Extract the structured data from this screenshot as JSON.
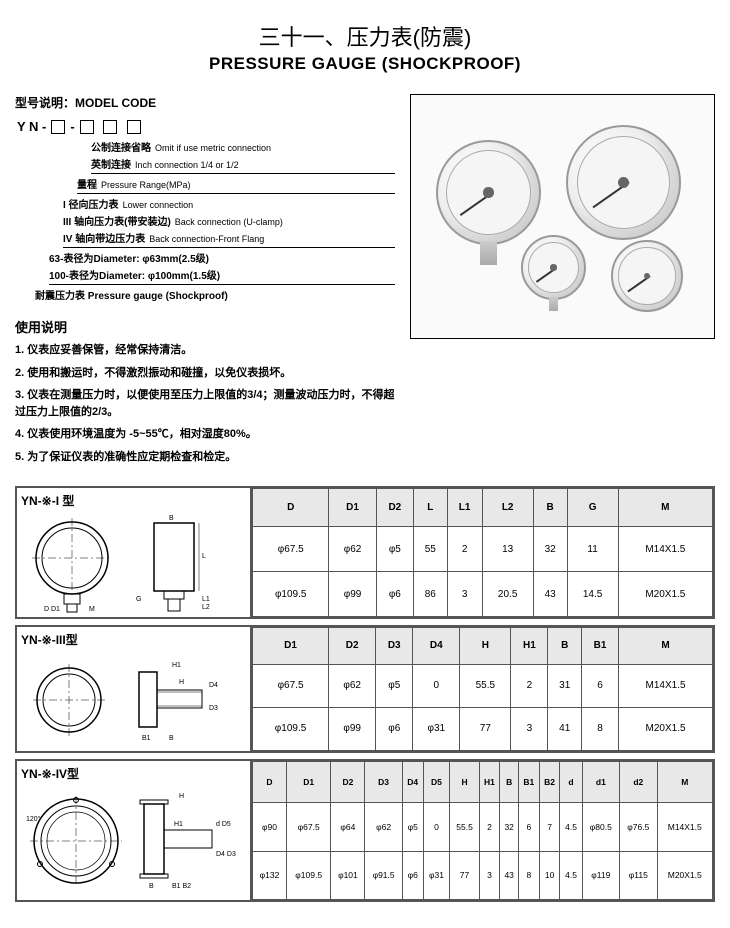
{
  "title_cn": "三十一、压力表(防震)",
  "title_en": "PRESSURE GAUGE (SHOCKPROOF)",
  "model_heading": "型号说明：MODEL CODE",
  "code_prefix": "Y N -",
  "code_lines": [
    {
      "cn": "公制连接省略",
      "en": "Omit if use metric connection",
      "indent": 76
    },
    {
      "cn": "英制连接",
      "en": "Inch connection 1/4 or 1/2",
      "indent": 76
    },
    {
      "cn": "量程",
      "en": "Pressure Range(MPa)",
      "indent": 62
    },
    {
      "cn": "I 径向压力表",
      "en": "Lower connection",
      "indent": 48
    },
    {
      "cn": "III 轴向压力表(带安装边)",
      "en": "Back connection (U-clamp)",
      "indent": 48
    },
    {
      "cn": "IV 轴向带边压力表",
      "en": "Back connection-Front Flang",
      "indent": 48
    },
    {
      "cn": "63-表径为Diameter: φ63mm(2.5级)",
      "en": "",
      "indent": 34
    },
    {
      "cn": "100-表径为Diameter: φ100mm(1.5级)",
      "en": "",
      "indent": 34
    },
    {
      "cn": "耐震压力表 Pressure gauge (Shockproof)",
      "en": "",
      "indent": 20
    }
  ],
  "usage_heading": "使用说明",
  "usage_items": [
    "1. 仪表应妥善保管，经常保持清洁。",
    "2. 使用和搬运时，不得激烈振动和碰撞，以免仪表损坏。",
    "3. 仪表在测量压力时，以便使用至压力上限值的3/4；测量波动压力时，不得超过压力上限值的2/3。",
    "4. 仪表使用环境温度为 -5~55℃，相对湿度80%。",
    "5. 为了保证仪表的准确性应定期检查和检定。"
  ],
  "table1": {
    "title": "YN-※-I 型",
    "headers": [
      "D",
      "D1",
      "D2",
      "L",
      "L1",
      "L2",
      "B",
      "G",
      "M"
    ],
    "rows": [
      [
        "φ67.5",
        "φ62",
        "φ5",
        "55",
        "2",
        "13",
        "32",
        "11",
        "M14X1.5"
      ],
      [
        "φ109.5",
        "φ99",
        "φ6",
        "86",
        "3",
        "20.5",
        "43",
        "14.5",
        "M20X1.5"
      ]
    ]
  },
  "table2": {
    "title": "YN-※-III型",
    "headers": [
      "D1",
      "D2",
      "D3",
      "D4",
      "H",
      "H1",
      "B",
      "B1",
      "M"
    ],
    "rows": [
      [
        "φ67.5",
        "φ62",
        "φ5",
        "0",
        "55.5",
        "2",
        "31",
        "6",
        "M14X1.5"
      ],
      [
        "φ109.5",
        "φ99",
        "φ6",
        "φ31",
        "77",
        "3",
        "41",
        "8",
        "M20X1.5"
      ]
    ]
  },
  "table3": {
    "title": "YN-※-IV型",
    "headers": [
      "D",
      "D1",
      "D2",
      "D3",
      "D4",
      "D5",
      "H",
      "H1",
      "B",
      "B1",
      "B2",
      "d",
      "d1",
      "d2",
      "M"
    ],
    "rows": [
      [
        "φ90",
        "φ67.5",
        "φ64",
        "φ62",
        "φ5",
        "0",
        "55.5",
        "2",
        "32",
        "6",
        "7",
        "4.5",
        "φ80.5",
        "φ76.5",
        "M14X1.5"
      ],
      [
        "φ132",
        "φ109.5",
        "φ101",
        "φ91.5",
        "φ6",
        "φ31",
        "77",
        "3",
        "43",
        "8",
        "10",
        "4.5",
        "φ119",
        "φ115",
        "M20X1.5"
      ]
    ]
  },
  "colors": {
    "border": "#555555",
    "header_bg": "#e8e8e8"
  }
}
